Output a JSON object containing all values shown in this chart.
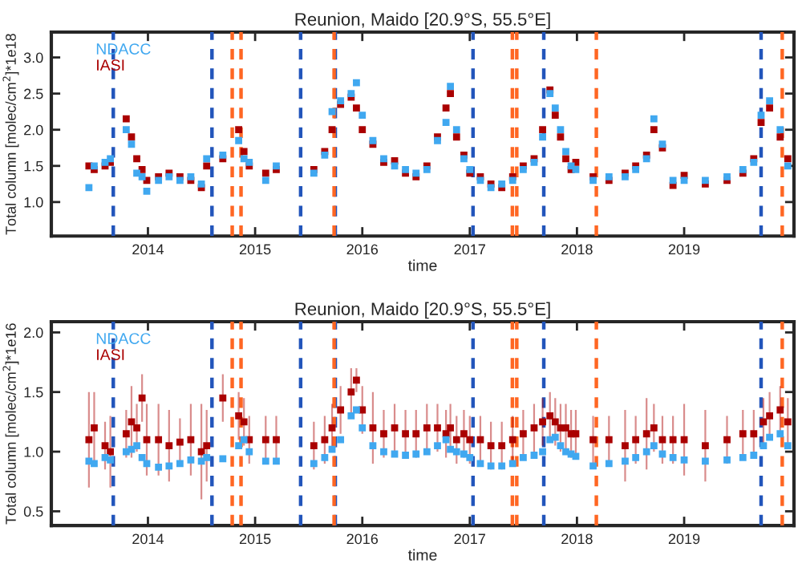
{
  "chart_data": [
    {
      "type": "scatter",
      "title": "Reunion, Maido [20.9°S, 55.5°E]",
      "xlabel": "time",
      "ylabel": "Total column [molec/cm$^{2}$]*1e18",
      "x": [
        "2013-06-14",
        "2013-07-02",
        "2013-08-08",
        "2013-08-26",
        "2013-10-19",
        "2013-11-06",
        "2013-11-24",
        "2013-12-12",
        "2013-12-28",
        "2014-02-06",
        "2014-03-14",
        "2014-04-20",
        "2014-05-27",
        "2014-07-02",
        "2014-07-20",
        "2014-09-13",
        "2014-11-06",
        "2014-11-24",
        "2014-12-12",
        "2015-02-06",
        "2015-03-14",
        "2015-07-20",
        "2015-08-26",
        "2015-09-20",
        "2015-10-19",
        "2015-11-24",
        "2015-12-12",
        "2016-01-01",
        "2016-02-06",
        "2016-03-14",
        "2016-04-20",
        "2016-05-27",
        "2016-07-02",
        "2016-08-08",
        "2016-09-13",
        "2016-10-12",
        "2016-10-27",
        "2016-11-17",
        "2016-12-12",
        "2017-01-01",
        "2017-02-06",
        "2017-03-14",
        "2017-04-20",
        "2017-05-27",
        "2017-07-02",
        "2017-08-08",
        "2017-09-06",
        "2017-10-01",
        "2017-10-19",
        "2017-11-06",
        "2017-11-24",
        "2017-12-12",
        "2017-12-28",
        "2018-02-25",
        "2018-04-20",
        "2018-06-14",
        "2018-07-20",
        "2018-08-26",
        "2018-09-20",
        "2018-10-19",
        "2018-11-24",
        "2019-01-01",
        "2019-03-14",
        "2019-05-27",
        "2019-07-20",
        "2019-08-26",
        "2019-09-20",
        "2019-10-19",
        "2019-11-24",
        "2019-12-20"
      ],
      "series": [
        {
          "name": "IASI",
          "color": "#aa0000",
          "values": [
            1.5,
            1.45,
            1.5,
            1.55,
            2.15,
            1.9,
            1.6,
            1.45,
            1.3,
            1.35,
            1.4,
            1.35,
            1.3,
            1.2,
            1.5,
            1.6,
            2.0,
            1.7,
            1.5,
            1.4,
            1.45,
            1.45,
            1.7,
            2.0,
            2.35,
            2.45,
            2.3,
            2.0,
            1.8,
            1.55,
            1.57,
            1.4,
            1.35,
            1.5,
            1.9,
            2.3,
            2.5,
            1.9,
            1.65,
            1.4,
            1.35,
            1.25,
            1.2,
            1.35,
            1.5,
            1.6,
            2.0,
            2.55,
            2.2,
            1.9,
            1.6,
            1.45,
            1.55,
            1.35,
            1.3,
            1.4,
            1.5,
            1.65,
            2.0,
            1.75,
            1.23,
            1.37,
            1.25,
            1.3,
            1.4,
            1.6,
            2.1,
            2.3,
            1.9,
            1.6
          ]
        },
        {
          "name": "NDACC",
          "color": "#40a8f0",
          "values": [
            1.2,
            1.5,
            1.55,
            1.6,
            2.0,
            1.8,
            1.4,
            1.35,
            1.15,
            1.3,
            1.35,
            1.3,
            1.35,
            1.25,
            1.6,
            1.65,
            1.85,
            1.6,
            1.55,
            1.3,
            1.5,
            1.4,
            1.65,
            2.25,
            2.4,
            2.5,
            2.65,
            2.2,
            1.85,
            1.6,
            1.5,
            1.45,
            1.4,
            1.45,
            1.85,
            2.1,
            2.6,
            2.0,
            1.6,
            1.45,
            1.3,
            1.2,
            1.25,
            1.3,
            1.45,
            1.55,
            1.9,
            2.5,
            2.3,
            2.0,
            1.7,
            1.5,
            1.45,
            1.3,
            1.35,
            1.35,
            1.45,
            1.6,
            2.15,
            1.8,
            1.3,
            1.3,
            1.3,
            1.35,
            1.45,
            1.55,
            2.2,
            2.4,
            2.0,
            1.5
          ]
        }
      ],
      "xlim": [
        "2013-02-06",
        "2020-01-10"
      ],
      "xticks": [
        {
          "value": "2014-01-01",
          "label": "2014"
        },
        {
          "value": "2015-01-01",
          "label": "2015"
        },
        {
          "value": "2016-01-01",
          "label": "2016"
        },
        {
          "value": "2017-01-01",
          "label": "2017"
        },
        {
          "value": "2018-01-01",
          "label": "2018"
        },
        {
          "value": "2019-01-01",
          "label": "2019"
        }
      ],
      "ylim": [
        0.53,
        3.35
      ],
      "yticks": [
        {
          "value": 1,
          "label": "1.0"
        },
        {
          "value": 1.5,
          "label": "1.5"
        },
        {
          "value": 2,
          "label": "2.0"
        },
        {
          "value": 2.5,
          "label": "2.5"
        },
        {
          "value": 3,
          "label": "3.0"
        }
      ],
      "marker": "square",
      "legend": "top left",
      "grid": false,
      "ref_lines": [
        {
          "axis": "x",
          "value": "2013-09-05",
          "color": "#2255bb",
          "line_style": "dashed"
        },
        {
          "axis": "x",
          "value": "2014-08-07",
          "color": "#2255bb",
          "line_style": "dashed"
        },
        {
          "axis": "x",
          "value": "2015-06-05",
          "color": "#2255bb",
          "line_style": "dashed"
        },
        {
          "axis": "x",
          "value": "2015-10-01",
          "color": "#2255bb",
          "line_style": "dashed"
        },
        {
          "axis": "x",
          "value": "2017-01-12",
          "color": "#2255bb",
          "line_style": "dashed"
        },
        {
          "axis": "x",
          "value": "2017-09-10",
          "color": "#2255bb",
          "line_style": "dashed"
        },
        {
          "axis": "x",
          "value": "2019-09-20",
          "color": "#2255bb",
          "line_style": "dashed"
        },
        {
          "axis": "x",
          "value": "2014-10-15",
          "color": "#ff6622",
          "line_style": "dashed"
        },
        {
          "axis": "x",
          "value": "2014-11-14",
          "color": "#ff6622",
          "line_style": "dashed"
        },
        {
          "axis": "x",
          "value": "2015-09-27",
          "color": "#ff6622",
          "line_style": "dashed"
        },
        {
          "axis": "x",
          "value": "2017-05-26",
          "color": "#ff6622",
          "line_style": "dashed"
        },
        {
          "axis": "x",
          "value": "2017-06-10",
          "color": "#ff6622",
          "line_style": "dashed"
        },
        {
          "axis": "x",
          "value": "2018-03-08",
          "color": "#ff6622",
          "line_style": "dashed"
        },
        {
          "axis": "x",
          "value": "2019-12-01",
          "color": "#ff6622",
          "line_style": "dashed"
        }
      ]
    },
    {
      "type": "scatter",
      "title": "Reunion, Maido [20.9°S, 55.5°E]",
      "xlabel": "time",
      "ylabel": "Total column [molec/cm$^{2}$]*1e16",
      "x": [
        "2013-06-14",
        "2013-07-02",
        "2013-08-08",
        "2013-08-26",
        "2013-10-19",
        "2013-11-06",
        "2013-11-24",
        "2013-12-12",
        "2013-12-28",
        "2014-02-06",
        "2014-03-14",
        "2014-04-20",
        "2014-05-27",
        "2014-07-02",
        "2014-07-20",
        "2014-09-13",
        "2014-11-06",
        "2014-11-24",
        "2014-12-12",
        "2015-02-06",
        "2015-03-14",
        "2015-07-20",
        "2015-08-26",
        "2015-09-20",
        "2015-10-19",
        "2015-11-24",
        "2015-12-12",
        "2016-01-01",
        "2016-02-06",
        "2016-03-14",
        "2016-04-20",
        "2016-05-27",
        "2016-07-02",
        "2016-08-08",
        "2016-09-13",
        "2016-10-12",
        "2016-10-27",
        "2016-11-17",
        "2016-12-12",
        "2017-01-01",
        "2017-02-06",
        "2017-03-14",
        "2017-04-20",
        "2017-05-27",
        "2017-07-02",
        "2017-08-08",
        "2017-09-06",
        "2017-10-01",
        "2017-10-19",
        "2017-11-06",
        "2017-11-24",
        "2017-12-12",
        "2017-12-28",
        "2018-02-25",
        "2018-04-20",
        "2018-06-14",
        "2018-07-20",
        "2018-08-26",
        "2018-09-20",
        "2018-10-19",
        "2018-11-24",
        "2019-01-01",
        "2019-03-14",
        "2019-05-27",
        "2019-07-20",
        "2019-08-26",
        "2019-09-28",
        "2019-10-19",
        "2019-11-24",
        "2019-12-20"
      ],
      "series": [
        {
          "name": "IASI",
          "color": "#aa0000",
          "values": [
            1.1,
            1.2,
            1.05,
            1.0,
            1.15,
            1.25,
            1.2,
            1.45,
            1.1,
            1.1,
            1.05,
            1.08,
            1.1,
            1.0,
            1.05,
            1.45,
            1.3,
            1.25,
            1.1,
            1.1,
            1.1,
            1.05,
            1.1,
            1.2,
            1.35,
            1.5,
            1.6,
            1.35,
            1.2,
            1.15,
            1.2,
            1.15,
            1.15,
            1.2,
            1.2,
            1.15,
            1.2,
            1.1,
            1.15,
            1.1,
            1.1,
            1.05,
            1.05,
            1.1,
            1.15,
            1.2,
            1.25,
            1.3,
            1.25,
            1.2,
            1.2,
            1.15,
            1.15,
            1.1,
            1.1,
            1.05,
            1.1,
            1.15,
            1.2,
            1.1,
            1.1,
            1.1,
            1.05,
            1.1,
            1.15,
            1.15,
            1.25,
            1.3,
            1.35,
            1.25
          ],
          "errors": [
            0.4,
            0.3,
            0.2,
            0.3,
            0.2,
            0.3,
            0.2,
            0.2,
            0.3,
            0.3,
            0.3,
            0.2,
            0.3,
            0.4,
            0.3,
            0.2,
            0.2,
            0.2,
            0.2,
            0.2,
            0.2,
            0.2,
            0.2,
            0.2,
            0.2,
            0.2,
            0.1,
            0.2,
            0.3,
            0.2,
            0.2,
            0.2,
            0.2,
            0.2,
            0.2,
            0.2,
            0.2,
            0.2,
            0.2,
            0.2,
            0.2,
            0.2,
            0.2,
            0.2,
            0.2,
            0.2,
            0.2,
            0.2,
            0.2,
            0.2,
            0.2,
            0.2,
            0.2,
            0.2,
            0.2,
            0.3,
            0.2,
            0.3,
            0.2,
            0.2,
            0.2,
            0.3,
            0.3,
            0.2,
            0.2,
            0.2,
            0.2,
            0.2,
            0.2,
            0.2
          ]
        },
        {
          "name": "NDACC",
          "color": "#40a8f0",
          "values": [
            0.92,
            0.9,
            0.95,
            0.93,
            1.0,
            1.02,
            1.05,
            0.95,
            0.9,
            0.87,
            0.88,
            0.9,
            0.93,
            0.92,
            0.95,
            0.94,
            1.05,
            1.1,
            1.0,
            0.92,
            0.92,
            0.9,
            0.95,
            1.02,
            1.1,
            1.3,
            1.35,
            1.2,
            1.05,
            1.0,
            0.98,
            0.97,
            0.98,
            1.0,
            1.05,
            1.1,
            1.02,
            1.0,
            0.98,
            0.95,
            0.9,
            0.88,
            0.88,
            0.9,
            0.95,
            0.97,
            1.0,
            1.1,
            1.12,
            1.05,
            1.0,
            0.98,
            0.96,
            0.88,
            0.9,
            0.92,
            0.95,
            1.0,
            1.05,
            0.98,
            0.95,
            0.93,
            0.92,
            0.93,
            0.95,
            0.97,
            1.05,
            1.12,
            1.15,
            1.05
          ]
        }
      ],
      "xlim": [
        "2013-02-06",
        "2020-01-10"
      ],
      "xticks": [
        {
          "value": "2014-01-01",
          "label": "2014"
        },
        {
          "value": "2015-01-01",
          "label": "2015"
        },
        {
          "value": "2016-01-01",
          "label": "2016"
        },
        {
          "value": "2017-01-01",
          "label": "2017"
        },
        {
          "value": "2018-01-01",
          "label": "2018"
        },
        {
          "value": "2019-01-01",
          "label": "2019"
        }
      ],
      "ylim": [
        0.38,
        2.09
      ],
      "yticks": [
        0.5,
        {
          "value": 1,
          "label": "1.0"
        },
        1.5,
        {
          "value": 2,
          "label": "2.0"
        }
      ],
      "marker": "square",
      "legend": "top left",
      "grid": false,
      "ref_lines": [
        {
          "axis": "x",
          "value": "2013-09-05",
          "color": "#2255bb",
          "line_style": "dashed"
        },
        {
          "axis": "x",
          "value": "2014-08-07",
          "color": "#2255bb",
          "line_style": "dashed"
        },
        {
          "axis": "x",
          "value": "2015-06-05",
          "color": "#2255bb",
          "line_style": "dashed"
        },
        {
          "axis": "x",
          "value": "2015-10-01",
          "color": "#2255bb",
          "line_style": "dashed"
        },
        {
          "axis": "x",
          "value": "2017-01-12",
          "color": "#2255bb",
          "line_style": "dashed"
        },
        {
          "axis": "x",
          "value": "2017-09-10",
          "color": "#2255bb",
          "line_style": "dashed"
        },
        {
          "axis": "x",
          "value": "2019-09-20",
          "color": "#2255bb",
          "line_style": "dashed"
        },
        {
          "axis": "x",
          "value": "2014-10-15",
          "color": "#ff6622",
          "line_style": "dashed"
        },
        {
          "axis": "x",
          "value": "2014-11-14",
          "color": "#ff6622",
          "line_style": "dashed"
        },
        {
          "axis": "x",
          "value": "2015-09-27",
          "color": "#ff6622",
          "line_style": "dashed"
        },
        {
          "axis": "x",
          "value": "2017-05-26",
          "color": "#ff6622",
          "line_style": "dashed"
        },
        {
          "axis": "x",
          "value": "2017-06-10",
          "color": "#ff6622",
          "line_style": "dashed"
        },
        {
          "axis": "x",
          "value": "2018-03-08",
          "color": "#ff6622",
          "line_style": "dashed"
        },
        {
          "axis": "x",
          "value": "2019-12-01",
          "color": "#ff6622",
          "line_style": "dashed"
        }
      ]
    }
  ]
}
